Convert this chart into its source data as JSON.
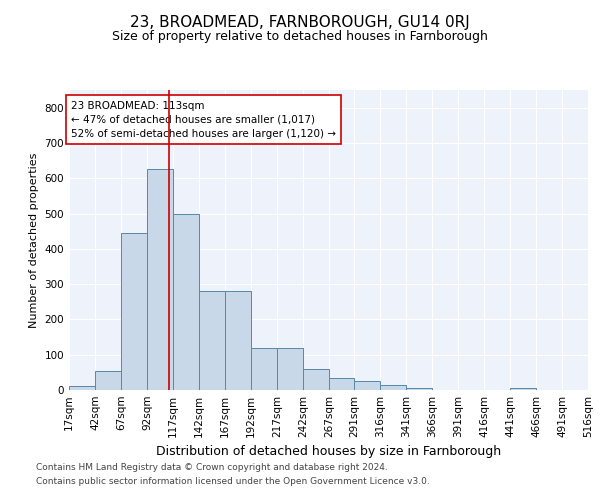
{
  "title": "23, BROADMEAD, FARNBOROUGH, GU14 0RJ",
  "subtitle": "Size of property relative to detached houses in Farnborough",
  "xlabel": "Distribution of detached houses by size in Farnborough",
  "ylabel": "Number of detached properties",
  "bin_edges": [
    17,
    42,
    67,
    92,
    117,
    142,
    167,
    192,
    217,
    242,
    267,
    291,
    316,
    341,
    366,
    391,
    416,
    441,
    466,
    491,
    516
  ],
  "bar_heights": [
    10,
    55,
    445,
    625,
    500,
    280,
    280,
    120,
    120,
    60,
    35,
    25,
    15,
    5,
    0,
    0,
    0,
    5,
    0,
    0
  ],
  "bar_color": "#c8d8e8",
  "bar_edgecolor": "#5588aa",
  "vline_x": 113,
  "vline_color": "#cc0000",
  "annotation_text": "23 BROADMEAD: 113sqm\n← 47% of detached houses are smaller (1,017)\n52% of semi-detached houses are larger (1,120) →",
  "annotation_box_color": "#ffffff",
  "annotation_box_edgecolor": "#cc0000",
  "ylim": [
    0,
    850
  ],
  "yticks": [
    0,
    100,
    200,
    300,
    400,
    500,
    600,
    700,
    800
  ],
  "background_color": "#eef2fa",
  "footer_line1": "Contains HM Land Registry data © Crown copyright and database right 2024.",
  "footer_line2": "Contains public sector information licensed under the Open Government Licence v3.0.",
  "title_fontsize": 11,
  "subtitle_fontsize": 9,
  "xlabel_fontsize": 9,
  "ylabel_fontsize": 8,
  "tick_fontsize": 7.5,
  "annotation_fontsize": 7.5,
  "footer_fontsize": 6.5
}
